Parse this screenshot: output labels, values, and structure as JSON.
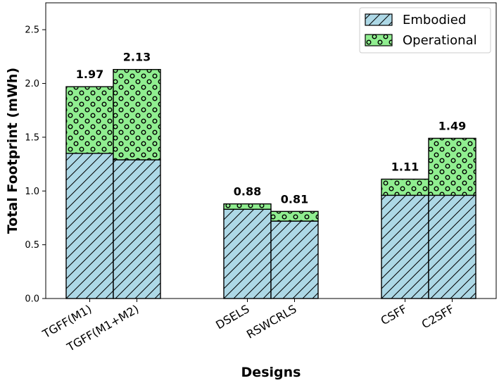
{
  "chart_data": {
    "type": "bar",
    "stacked": true,
    "title": "",
    "xlabel": "Designs",
    "ylabel": "Total Footprint (mWh)",
    "ylim": [
      0,
      2.75
    ],
    "yticks": [
      "0.0",
      "0.5",
      "1.0",
      "1.5",
      "2.0",
      "2.5"
    ],
    "grid": false,
    "legend_position": "top-right",
    "categories": [
      "TGFF(M1)",
      "TGFF(M1+M2)",
      "DSELS",
      "RSWCRLS",
      "CSFF",
      "C2SFF"
    ],
    "series": [
      {
        "name": "Embodied",
        "values": [
          1.35,
          1.29,
          0.83,
          0.72,
          0.96,
          0.96
        ],
        "color": "#add8e6",
        "pattern": "diagonal-hatch"
      },
      {
        "name": "Operational",
        "values": [
          0.62,
          0.84,
          0.05,
          0.09,
          0.15,
          0.53
        ],
        "color": "#90ee90",
        "pattern": "circles"
      }
    ],
    "totals": [
      "1.97",
      "2.13",
      "0.88",
      "0.81",
      "1.11",
      "1.49"
    ]
  }
}
